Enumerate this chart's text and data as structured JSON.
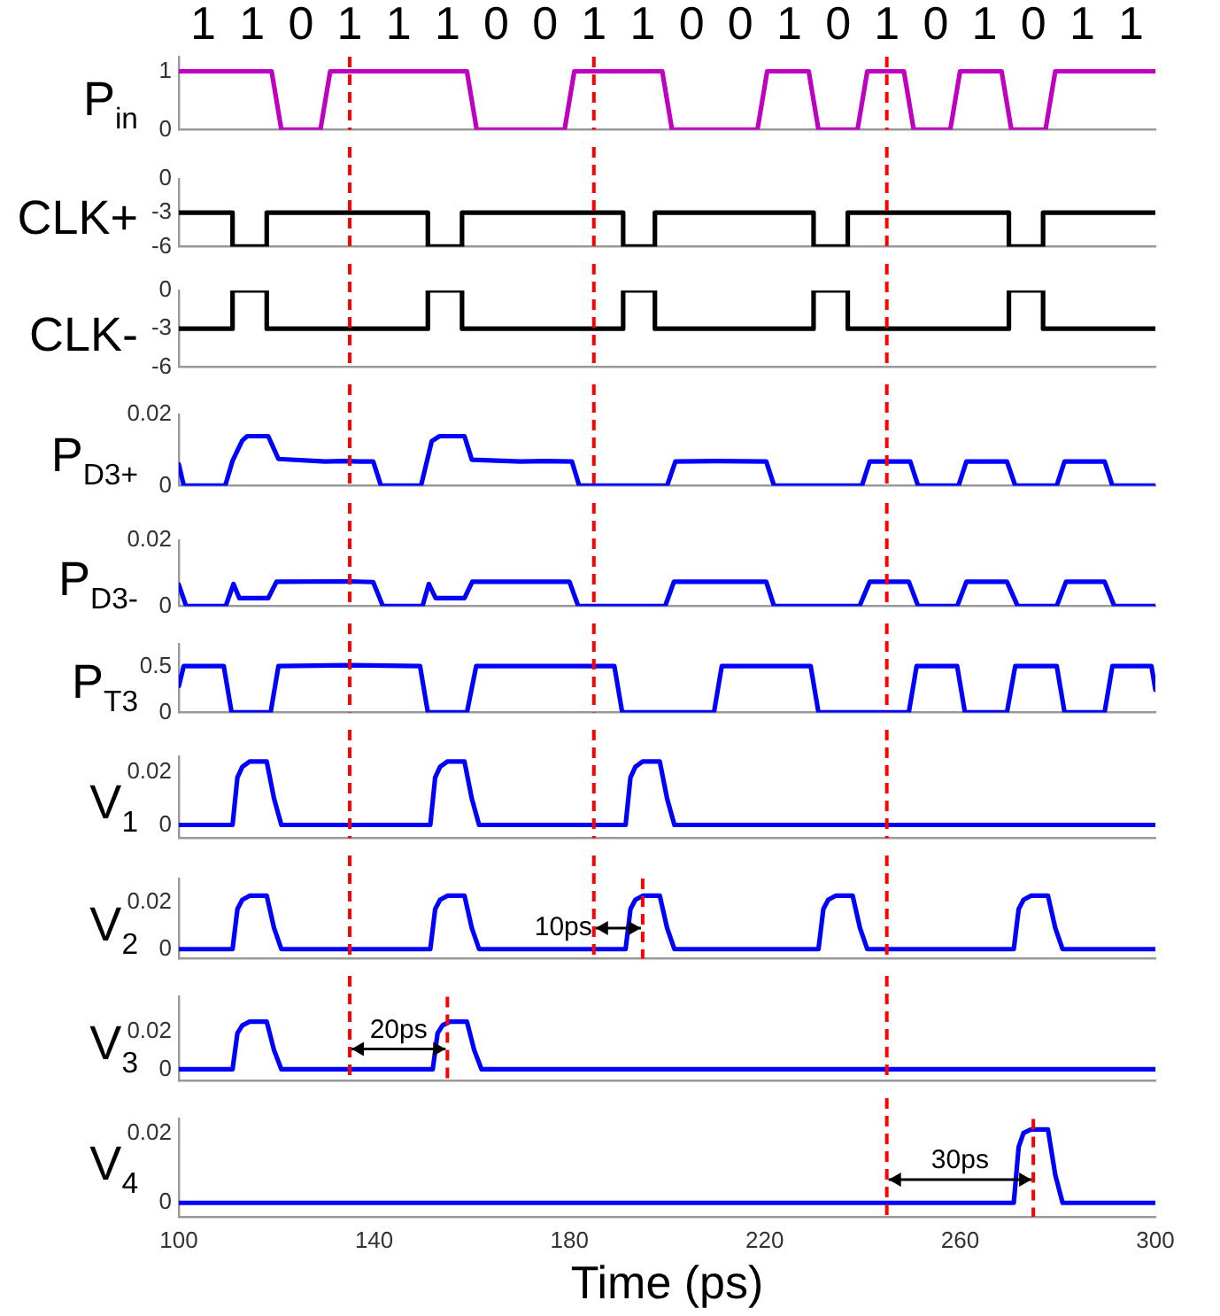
{
  "chart_data": [
    {
      "type": "line",
      "title": "1 1 0 1 1 1 0 0 1 1 0 0 1 0 1 0 1 0 1 1",
      "ylabel": "P$_{in}$",
      "xlim": [
        100,
        300
      ],
      "ylim": [
        0,
        1.25
      ],
      "yticks": [
        0,
        1
      ],
      "tick_labels": "y",
      "x": [
        100,
        119,
        121,
        129,
        131,
        159,
        161,
        179,
        181,
        199,
        201,
        218.5,
        220.5,
        229,
        231,
        239,
        241,
        248.5,
        250.5,
        258,
        260,
        268.5,
        270.5,
        277.5,
        279.5,
        300
      ],
      "series": [
        {
          "color": "#c000c0",
          "values": [
            1,
            1,
            0,
            0,
            1,
            1,
            0,
            0,
            1,
            1,
            0,
            0,
            1,
            1,
            0,
            0,
            1,
            1,
            0,
            0,
            1,
            1,
            0,
            0,
            1,
            1
          ]
        }
      ],
      "ref_lines": [
        {
          "axis": "x",
          "value": 135,
          "color": "#ff0000",
          "line_style": "dashed"
        },
        {
          "axis": "x",
          "value": 185,
          "color": "#ff0000",
          "line_style": "dashed"
        },
        {
          "axis": "x",
          "value": 245,
          "color": "#ff0000",
          "line_style": "dashed"
        }
      ]
    },
    {
      "type": "line",
      "ylabel": "CLK+",
      "xlim": [
        100,
        300
      ],
      "ylim": [
        -6,
        0
      ],
      "yticks": [
        -6,
        -3,
        0
      ],
      "tick_labels": "y",
      "x": [
        100,
        111,
        111,
        118,
        118,
        151,
        151,
        158,
        158,
        191,
        191,
        197.5,
        197.5,
        230,
        230,
        237,
        237,
        270,
        270,
        277,
        277,
        300
      ],
      "series": [
        {
          "color": "#000000",
          "values": [
            -3,
            -3,
            -6,
            -6,
            -3,
            -3,
            -6,
            -6,
            -3,
            -3,
            -6,
            -6,
            -3,
            -3,
            -6,
            -6,
            -3,
            -3,
            -6,
            -6,
            -3,
            -3
          ]
        }
      ],
      "ref_lines": [
        {
          "axis": "x",
          "value": 135,
          "color": "#ff0000",
          "line_style": "dashed"
        },
        {
          "axis": "x",
          "value": 185,
          "color": "#ff0000",
          "line_style": "dashed"
        },
        {
          "axis": "x",
          "value": 245,
          "color": "#ff0000",
          "line_style": "dashed"
        }
      ]
    },
    {
      "type": "line",
      "ylabel": "CLK-",
      "xlim": [
        100,
        300
      ],
      "ylim": [
        -6,
        0
      ],
      "yticks": [
        -6,
        -3,
        0
      ],
      "tick_labels": "y",
      "x": [
        100,
        111,
        111,
        118,
        118,
        151,
        151,
        158,
        158,
        191,
        191,
        197.5,
        197.5,
        230,
        230,
        237,
        237,
        270,
        270,
        277,
        277,
        300
      ],
      "series": [
        {
          "color": "#000000",
          "values": [
            -3,
            -3,
            0,
            0,
            -3,
            -3,
            0,
            0,
            -3,
            -3,
            0,
            0,
            -3,
            -3,
            0,
            0,
            -3,
            -3,
            0,
            0,
            -3,
            -3
          ]
        }
      ],
      "ref_lines": [
        {
          "axis": "x",
          "value": 135,
          "color": "#ff0000",
          "line_style": "dashed"
        },
        {
          "axis": "x",
          "value": 185,
          "color": "#ff0000",
          "line_style": "dashed"
        },
        {
          "axis": "x",
          "value": 245,
          "color": "#ff0000",
          "line_style": "dashed"
        }
      ]
    },
    {
      "type": "line",
      "ylabel": "P$_{D3+}$",
      "xlim": [
        100,
        300
      ],
      "ylim": [
        0,
        0.02
      ],
      "yticks": [
        0,
        0.02
      ],
      "tick_labels": "y",
      "x": [
        100,
        101,
        109.5,
        111,
        113,
        114,
        118.3,
        120.4,
        130,
        133.5,
        137,
        139.8,
        141.4,
        149.6,
        151.8,
        153.4,
        158.5,
        160,
        170,
        175,
        180.5,
        182,
        200,
        201.7,
        210,
        220.3,
        221.9,
        239.9,
        241.5,
        249.8,
        251.4,
        259.7,
        261.3,
        269.6,
        271.3,
        279.8,
        281.4,
        289.6,
        291.2,
        300
      ],
      "series": [
        {
          "color": "#0000ff",
          "values": [
            0.006,
            0,
            0,
            0.007,
            0.0127,
            0.0139,
            0.0139,
            0.0075,
            0.0068,
            0.0069,
            0.0068,
            0.0068,
            0,
            0,
            0.0125,
            0.0139,
            0.0139,
            0.0073,
            0.0068,
            0.0069,
            0.0068,
            0,
            0,
            0.0068,
            0.0069,
            0.0068,
            0,
            0,
            0.0068,
            0.0068,
            0,
            0,
            0.0068,
            0.0068,
            0,
            0,
            0.0068,
            0.0068,
            0,
            0
          ]
        }
      ],
      "ref_lines": [
        {
          "axis": "x",
          "value": 135,
          "color": "#ff0000",
          "line_style": "dashed"
        },
        {
          "axis": "x",
          "value": 185,
          "color": "#ff0000",
          "line_style": "dashed"
        },
        {
          "axis": "x",
          "value": 245,
          "color": "#ff0000",
          "line_style": "dashed"
        }
      ]
    },
    {
      "type": "line",
      "ylabel": "P$_{D3-}$",
      "xlim": [
        100,
        300
      ],
      "ylim": [
        0,
        0.02
      ],
      "yticks": [
        0,
        0.02
      ],
      "tick_labels": "y",
      "x": [
        100,
        101.5,
        109.6,
        111.2,
        112.4,
        118.3,
        120,
        135,
        139.8,
        141.8,
        149.9,
        151.2,
        152.6,
        158.5,
        160.1,
        180,
        181.8,
        199.6,
        201.4,
        220.3,
        221.9,
        239.4,
        241.5,
        249.5,
        251.4,
        259.4,
        261.3,
        269.6,
        271.8,
        279.8,
        281.7,
        289.6,
        291.6,
        300
      ],
      "series": [
        {
          "color": "#0000ff",
          "values": [
            0.0065,
            0,
            0,
            0.0067,
            0.0024,
            0.0024,
            0.0074,
            0.0075,
            0.0073,
            0,
            0,
            0.0067,
            0.0024,
            0.0024,
            0.0074,
            0.0074,
            0,
            0,
            0.0074,
            0.0074,
            0,
            0,
            0.0074,
            0.0074,
            0,
            0,
            0.0074,
            0.0074,
            0,
            0,
            0.0074,
            0.0074,
            0,
            0
          ]
        }
      ],
      "ref_lines": [
        {
          "axis": "x",
          "value": 135,
          "color": "#ff0000",
          "line_style": "dashed"
        },
        {
          "axis": "x",
          "value": 185,
          "color": "#ff0000",
          "line_style": "dashed"
        },
        {
          "axis": "x",
          "value": 245,
          "color": "#ff0000",
          "line_style": "dashed"
        }
      ]
    },
    {
      "type": "line",
      "ylabel": "P$_{T3}$",
      "xlim": [
        100,
        300
      ],
      "ylim": [
        0,
        0.75
      ],
      "yticks": [
        0,
        0.5
      ],
      "tick_labels": "y",
      "x": [
        100,
        101,
        109.2,
        110.8,
        118.8,
        120.4,
        135,
        149.4,
        151,
        159,
        160.9,
        189.2,
        190.8,
        209.6,
        211.2,
        229.4,
        231,
        249.5,
        251.1,
        259.4,
        261,
        269.6,
        271.3,
        279.8,
        281.4,
        289.6,
        291.2,
        299.2,
        300
      ],
      "series": [
        {
          "color": "#0000ff",
          "values": [
            0.29,
            0.51,
            0.51,
            0,
            0,
            0.51,
            0.52,
            0.51,
            0,
            0,
            0.51,
            0.51,
            0,
            0,
            0.51,
            0.51,
            0,
            0,
            0.51,
            0.51,
            0,
            0,
            0.51,
            0.51,
            0,
            0,
            0.51,
            0.51,
            0.25
          ]
        }
      ],
      "ref_lines": [
        {
          "axis": "x",
          "value": 135,
          "color": "#ff0000",
          "line_style": "dashed"
        },
        {
          "axis": "x",
          "value": 185,
          "color": "#ff0000",
          "line_style": "dashed"
        },
        {
          "axis": "x",
          "value": 245,
          "color": "#ff0000",
          "line_style": "dashed"
        }
      ]
    },
    {
      "type": "line",
      "ylabel": "V$_{1}$",
      "xlim": [
        100,
        300
      ],
      "ylim": [
        -0.005,
        0.026
      ],
      "yticks": [
        0,
        0.02
      ],
      "tick_labels": "y",
      "x": [
        100,
        111,
        112,
        113,
        114.5,
        118,
        119.5,
        121,
        151.5,
        152.5,
        153.5,
        155,
        158.5,
        160,
        161.5,
        191.5,
        192.5,
        193.5,
        195,
        198.5,
        200,
        201.5,
        300
      ],
      "series": [
        {
          "color": "#0000ff",
          "values": [
            0,
            0,
            0.018,
            0.022,
            0.024,
            0.024,
            0.01,
            0,
            0,
            0.018,
            0.022,
            0.024,
            0.024,
            0.01,
            0,
            0,
            0.018,
            0.022,
            0.024,
            0.024,
            0.01,
            0,
            0
          ]
        }
      ],
      "ref_lines": [
        {
          "axis": "x",
          "value": 135,
          "color": "#ff0000",
          "line_style": "dashed"
        },
        {
          "axis": "x",
          "value": 185,
          "color": "#ff0000",
          "line_style": "dashed"
        },
        {
          "axis": "x",
          "value": 245,
          "color": "#ff0000",
          "line_style": "dashed"
        }
      ]
    },
    {
      "type": "line",
      "ylabel": "V$_{2}$",
      "xlim": [
        100,
        300
      ],
      "ylim": [
        -0.004,
        0.03
      ],
      "yticks": [
        0,
        0.02
      ],
      "tick_labels": "y",
      "x": [
        100,
        111,
        112,
        113,
        114.5,
        118,
        119.5,
        121,
        151.5,
        152.5,
        153.5,
        155,
        158.5,
        160,
        161.5,
        191.5,
        192.5,
        193.5,
        195,
        198.5,
        200,
        201.5,
        231,
        232,
        233,
        234.5,
        238,
        239.5,
        241,
        271,
        272,
        273,
        274.5,
        278,
        279.5,
        281,
        300
      ],
      "series": [
        {
          "color": "#0000ff",
          "values": [
            0,
            0,
            0.017,
            0.021,
            0.0227,
            0.0227,
            0.009,
            0,
            0,
            0.017,
            0.021,
            0.0227,
            0.0227,
            0.009,
            0,
            0,
            0.017,
            0.021,
            0.0227,
            0.0227,
            0.009,
            0,
            0,
            0.017,
            0.021,
            0.0227,
            0.0227,
            0.009,
            0,
            0,
            0.017,
            0.021,
            0.0227,
            0.0227,
            0.009,
            0,
            0
          ]
        }
      ],
      "ref_lines": [
        {
          "axis": "x",
          "value": 135,
          "color": "#ff0000",
          "line_style": "dashed"
        },
        {
          "axis": "x",
          "value": 185,
          "color": "#ff0000",
          "line_style": "dashed"
        },
        {
          "axis": "x",
          "value": 195,
          "color": "#ff0000",
          "line_style": "dashed"
        },
        {
          "axis": "x",
          "value": 245,
          "color": "#ff0000",
          "line_style": "dashed"
        }
      ],
      "annotations": [
        "10ps"
      ]
    },
    {
      "type": "line",
      "ylabel": "V$_{3}$",
      "xlim": [
        100,
        300
      ],
      "ylim": [
        -0.006,
        0.038
      ],
      "yticks": [
        0,
        0.02
      ],
      "tick_labels": "y",
      "x": [
        100,
        111,
        112,
        113,
        114.5,
        118,
        119.5,
        121,
        152,
        153,
        154,
        155.5,
        159,
        160.5,
        162,
        300
      ],
      "series": [
        {
          "color": "#0000ff",
          "values": [
            0,
            0,
            0.019,
            0.023,
            0.025,
            0.025,
            0.01,
            0,
            0,
            0.019,
            0.023,
            0.025,
            0.025,
            0.01,
            0,
            0
          ]
        }
      ],
      "ref_lines": [
        {
          "axis": "x",
          "value": 135,
          "color": "#ff0000",
          "line_style": "dashed"
        },
        {
          "axis": "x",
          "value": 155,
          "color": "#ff0000",
          "line_style": "dashed"
        },
        {
          "axis": "x",
          "value": 245,
          "color": "#ff0000",
          "line_style": "dashed"
        }
      ],
      "annotations": [
        "20ps"
      ]
    },
    {
      "type": "line",
      "ylabel": "V$_{4}$",
      "xlabel": "Time (ps)",
      "xlim": [
        100,
        300
      ],
      "xticks": [
        100,
        140,
        180,
        220,
        260,
        300
      ],
      "ylim": [
        -0.004,
        0.024
      ],
      "yticks": [
        0,
        0.02
      ],
      "x": [
        100,
        271,
        272,
        273,
        274.5,
        278,
        279.5,
        281,
        300
      ],
      "series": [
        {
          "color": "#0000ff",
          "values": [
            0,
            0,
            0.016,
            0.02,
            0.021,
            0.021,
            0.008,
            0,
            0
          ]
        }
      ],
      "ref_lines": [
        {
          "axis": "x",
          "value": 245,
          "color": "#ff0000",
          "line_style": "dashed"
        },
        {
          "axis": "x",
          "value": 275,
          "color": "#ff0000",
          "line_style": "dashed"
        }
      ],
      "annotations": [
        "30ps"
      ]
    }
  ]
}
